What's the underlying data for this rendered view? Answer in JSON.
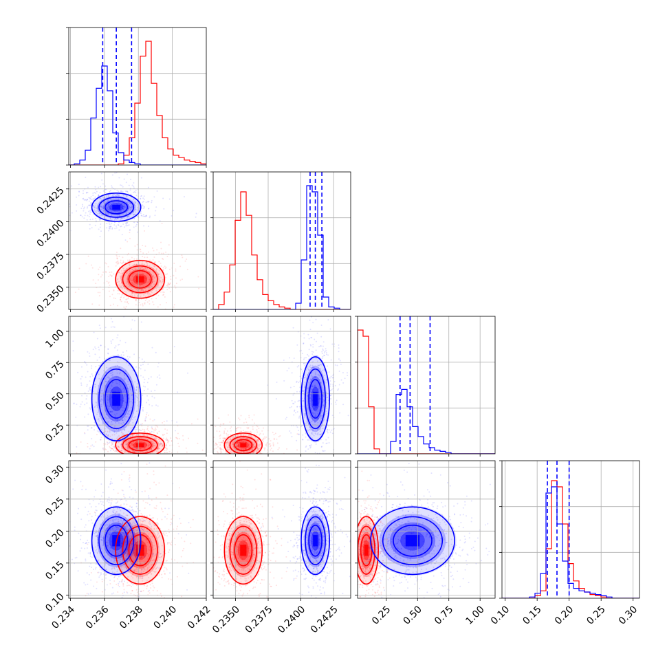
{
  "chart_data": {
    "type": "corner",
    "parameters": [
      {
        "lim": [
          0.2339,
          0.242
        ],
        "ticks": [
          0.234,
          0.236,
          0.238,
          0.24,
          0.242
        ],
        "tick_labels": [
          "0.234",
          "0.236",
          "0.238",
          "0.240",
          "0.242"
        ]
      },
      {
        "lim": [
          0.2333,
          0.2438
        ],
        "ticks": [
          0.235,
          0.2375,
          0.24,
          0.2425
        ],
        "tick_labels": [
          "0.2350",
          "0.2375",
          "0.2400",
          "0.2425"
        ]
      },
      {
        "lim": [
          0.02,
          1.12
        ],
        "ticks": [
          0.25,
          0.5,
          0.75,
          1.0
        ],
        "tick_labels": [
          "0.25",
          "0.50",
          "0.75",
          "1.00"
        ]
      },
      {
        "lim": [
          0.095,
          0.31
        ],
        "ticks": [
          0.1,
          0.15,
          0.2,
          0.25,
          0.3
        ],
        "tick_labels": [
          "0.10",
          "0.15",
          "0.20",
          "0.25",
          "0.30"
        ]
      }
    ],
    "series": [
      {
        "color": "#ff0000",
        "mean": [
          0.2381,
          0.2356,
          0.09,
          0.17
        ],
        "sd": [
          0.0006,
          0.0006,
          0.04,
          0.022
        ],
        "quantiles": null,
        "hist": [
          [
            0,
            0,
            0,
            0,
            0,
            0,
            0,
            0,
            0,
            1,
            8,
            22,
            50,
            88,
            100,
            66,
            40,
            22,
            13,
            8,
            6,
            4,
            3,
            2,
            1
          ],
          [
            0,
            4,
            14,
            36,
            72,
            95,
            76,
            44,
            24,
            12,
            7,
            4,
            2,
            1,
            0,
            0,
            0,
            0,
            0,
            0,
            0,
            0,
            0,
            0,
            0
          ],
          [
            100,
            95,
            38,
            4,
            0,
            0,
            0,
            0,
            0,
            0,
            0,
            0,
            0,
            0,
            0,
            0,
            0,
            0,
            0,
            0,
            0,
            0,
            0,
            0,
            0
          ],
          [
            0,
            0,
            0,
            0,
            0,
            0,
            2,
            6,
            40,
            95,
            90,
            60,
            28,
            14,
            8,
            5,
            3,
            2,
            1,
            0,
            0,
            0,
            0,
            0,
            0
          ]
        ]
      },
      {
        "color": "#0000ff",
        "mean": [
          0.2367,
          0.2411,
          0.46,
          0.185
        ],
        "sd": [
          0.0006,
          0.00045,
          0.14,
          0.022
        ],
        "quantiles": [
          [
            0.2359,
            0.2367,
            0.2376
          ],
          [
            0.2407,
            0.2411,
            0.2416
          ],
          [
            0.36,
            0.44,
            0.6
          ],
          [
            0.166,
            0.181,
            0.2
          ]
        ],
        "hist": [
          [
            0,
            1,
            4,
            12,
            38,
            62,
            80,
            60,
            26,
            10,
            4,
            2,
            1,
            0,
            0,
            0,
            0,
            0,
            0,
            0,
            0,
            0,
            0,
            0,
            0
          ],
          [
            0,
            0,
            0,
            0,
            0,
            0,
            0,
            0,
            0,
            0,
            0,
            0,
            0,
            0,
            0,
            5,
            40,
            100,
            95,
            60,
            10,
            2,
            1,
            0,
            0
          ],
          [
            0,
            0,
            0,
            0,
            0,
            0,
            10,
            48,
            52,
            38,
            22,
            14,
            8,
            5,
            3,
            2,
            1,
            0,
            0,
            0,
            0,
            0,
            0,
            0,
            0
          ],
          [
            0,
            0,
            0,
            0,
            0,
            1,
            4,
            20,
            85,
            90,
            60,
            30,
            12,
            8,
            6,
            5,
            4,
            3,
            2,
            1,
            0,
            0,
            0,
            0,
            0
          ]
        ]
      }
    ]
  }
}
